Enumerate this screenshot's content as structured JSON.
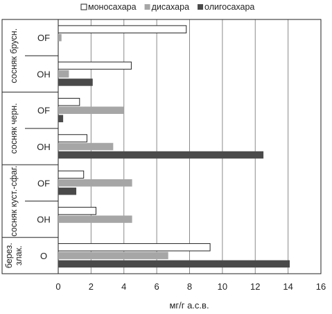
{
  "chart_data": {
    "type": "bar",
    "orientation": "horizontal",
    "xlabel": "мг/г а.с.в.",
    "xlim": [
      0,
      16
    ],
    "xticks": [
      0,
      2,
      4,
      6,
      8,
      10,
      12,
      14,
      16
    ],
    "grid": true,
    "legend_position": "top",
    "groups": [
      {
        "label": "сосняк брусн.",
        "subgroups": [
          "OF",
          "OH"
        ]
      },
      {
        "label": "сосняк черн.",
        "subgroups": [
          "OF",
          "OH"
        ]
      },
      {
        "label": "сосняк куст.-сфаг.",
        "subgroups": [
          "OF",
          "OH"
        ]
      },
      {
        "label": "берез. злак.",
        "subgroups": [
          "O"
        ]
      }
    ],
    "series": [
      {
        "name": "моносахара",
        "color": "#ffffff",
        "stroke": "#222222",
        "values": [
          7.8,
          4.45,
          1.3,
          1.75,
          1.55,
          2.3,
          9.25
        ]
      },
      {
        "name": "дисахара",
        "color": "#a6a6a6",
        "stroke": "none",
        "values": [
          0.2,
          0.65,
          4.0,
          3.35,
          4.5,
          4.5,
          6.7
        ]
      },
      {
        "name": "олигосахара",
        "color": "#4a4a4a",
        "stroke": "none",
        "values": [
          0.0,
          2.1,
          0.3,
          12.5,
          1.1,
          0.0,
          14.1
        ]
      }
    ]
  }
}
